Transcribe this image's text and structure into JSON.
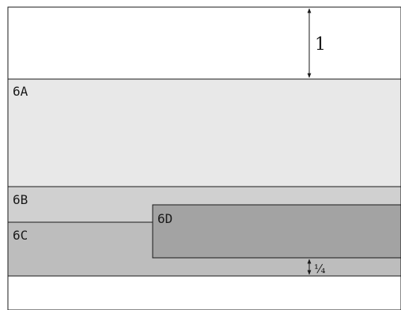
{
  "regions": {
    "r6a": {
      "label": "6A",
      "fill": "#e8e8e8"
    },
    "r6b": {
      "label": "6B",
      "fill": "#d0d0d0"
    },
    "r6c": {
      "label": "6C",
      "fill": "#bdbdbd"
    },
    "r6d": {
      "label": "6D",
      "fill": "#a3a3a3"
    }
  },
  "dimensions": {
    "top_height": "1",
    "bottom_gap": "¼"
  },
  "colors": {
    "stroke": "#1a1a1a",
    "background": "#ffffff"
  }
}
